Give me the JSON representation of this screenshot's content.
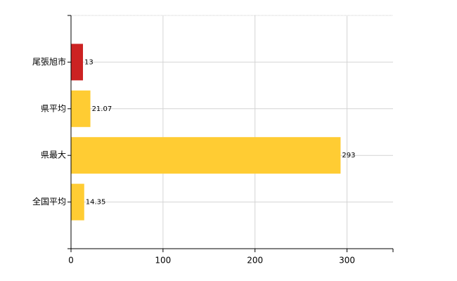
{
  "chart_data": {
    "type": "bar",
    "orientation": "horizontal",
    "categories": [
      "尾張旭市",
      "県平均",
      "県最大",
      "全国平均"
    ],
    "values": [
      13,
      21.07,
      293,
      14.35
    ],
    "colors": [
      "#cc2222",
      "#ffcc33",
      "#ffcc33",
      "#ffcc33"
    ],
    "xlim": [
      0,
      350
    ],
    "xticks": [
      0,
      100,
      200,
      300
    ],
    "grid": true
  }
}
